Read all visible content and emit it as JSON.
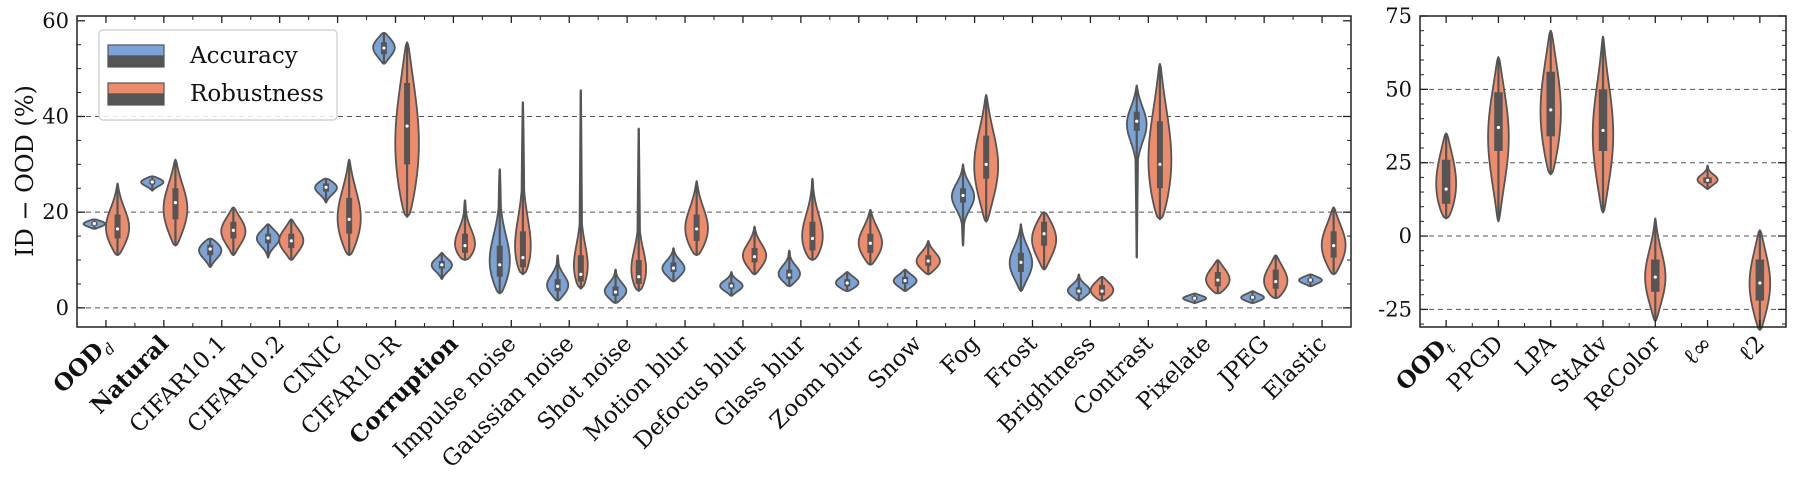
{
  "colors": {
    "accuracy": "#7ba3d6",
    "robustness": "#ec8c6c",
    "outline": "#555555",
    "box": "#555555",
    "grid": "#555555"
  },
  "chart_data": [
    {
      "type": "violin",
      "ylabel": "ID − OOD (%)",
      "ylim": [
        -4,
        61
      ],
      "yticks": [
        0,
        20,
        40,
        60
      ],
      "gridlines": [
        0,
        20,
        40
      ],
      "legend": {
        "placement": "top-left",
        "entries": [
          "Accuracy",
          "Robustness"
        ]
      },
      "categories": [
        {
          "label": "OOD",
          "sub": "d",
          "bold": true
        },
        {
          "label": "Natural",
          "bold": true
        },
        {
          "label": "CIFAR10.1"
        },
        {
          "label": "CIFAR10.2"
        },
        {
          "label": "CINIC"
        },
        {
          "label": "CIFAR10-R"
        },
        {
          "label": "Corruption",
          "bold": true
        },
        {
          "label": "Impulse noise"
        },
        {
          "label": "Gaussian noise"
        },
        {
          "label": "Shot noise"
        },
        {
          "label": "Motion blur"
        },
        {
          "label": "Defocus blur"
        },
        {
          "label": "Glass blur"
        },
        {
          "label": "Zoom blur"
        },
        {
          "label": "Snow"
        },
        {
          "label": "Fog"
        },
        {
          "label": "Frost"
        },
        {
          "label": "Brightness"
        },
        {
          "label": "Contrast"
        },
        {
          "label": "Pixelate"
        },
        {
          "label": "JPEG"
        },
        {
          "label": "Elastic"
        }
      ],
      "series": [
        {
          "name": "Accuracy",
          "color": "#7ba3d6",
          "violins": [
            {
              "min": 16.5,
              "max": 18.5,
              "q1": 17.2,
              "med": 17.6,
              "q3": 18.0,
              "mode": 17.6,
              "hw": 0.85
            },
            {
              "min": 24.5,
              "max": 27.5,
              "q1": 25.8,
              "med": 26.3,
              "q3": 26.8,
              "mode": 26.4,
              "hw": 0.9
            },
            {
              "min": 8.5,
              "max": 14.5,
              "q1": 11.0,
              "med": 12.3,
              "q3": 13.2,
              "mode": 12.3,
              "hw": 0.9
            },
            {
              "min": 10.5,
              "max": 17.5,
              "q1": 13.5,
              "med": 14.6,
              "q3": 15.5,
              "mode": 14.7,
              "hw": 0.9
            },
            {
              "min": 22.0,
              "max": 27.0,
              "q1": 24.3,
              "med": 25.2,
              "q3": 26.0,
              "mode": 25.4,
              "hw": 0.9
            },
            {
              "min": 51.0,
              "max": 57.5,
              "q1": 53.0,
              "med": 54.3,
              "q3": 55.5,
              "mode": 54.5,
              "hw": 0.85
            },
            {
              "min": 6.0,
              "max": 11.5,
              "q1": 8.2,
              "med": 9.0,
              "q3": 9.8,
              "mode": 9.0,
              "hw": 0.8
            },
            {
              "min": 3.0,
              "max": 29.0,
              "q1": 6.5,
              "med": 9.0,
              "q3": 13.0,
              "mode": 8.0,
              "hw": 0.95
            },
            {
              "min": 1.5,
              "max": 11.0,
              "q1": 3.5,
              "med": 4.5,
              "q3": 6.0,
              "mode": 4.3,
              "hw": 0.9
            },
            {
              "min": 1.0,
              "max": 8.0,
              "q1": 2.5,
              "med": 3.3,
              "q3": 4.5,
              "mode": 3.2,
              "hw": 0.9
            },
            {
              "min": 5.5,
              "max": 12.5,
              "q1": 7.5,
              "med": 8.3,
              "q3": 9.5,
              "mode": 8.0,
              "hw": 0.9
            },
            {
              "min": 2.5,
              "max": 7.5,
              "q1": 4.0,
              "med": 4.6,
              "q3": 5.3,
              "mode": 4.5,
              "hw": 0.9
            },
            {
              "min": 4.5,
              "max": 12.0,
              "q1": 6.0,
              "med": 6.9,
              "q3": 8.0,
              "mode": 6.8,
              "hw": 0.9
            },
            {
              "min": 3.5,
              "max": 7.5,
              "q1": 4.5,
              "med": 5.2,
              "q3": 6.0,
              "mode": 5.1,
              "hw": 0.9
            },
            {
              "min": 3.5,
              "max": 8.0,
              "q1": 5.0,
              "med": 5.7,
              "q3": 6.5,
              "mode": 5.6,
              "hw": 0.9
            },
            {
              "min": 13.0,
              "max": 30.0,
              "q1": 22.0,
              "med": 23.5,
              "q3": 25.0,
              "mode": 23.5,
              "hw": 0.9
            },
            {
              "min": 3.5,
              "max": 17.5,
              "q1": 7.5,
              "med": 9.5,
              "q3": 11.5,
              "mode": 9.0,
              "hw": 0.9
            },
            {
              "min": 1.5,
              "max": 7.0,
              "q1": 2.8,
              "med": 3.5,
              "q3": 4.3,
              "mode": 3.4,
              "hw": 0.9
            },
            {
              "min": 10.5,
              "max": 46.5,
              "q1": 37.0,
              "med": 39.0,
              "q3": 41.0,
              "mode": 39.0,
              "hw": 0.95
            },
            {
              "min": 1.0,
              "max": 3.0,
              "q1": 1.7,
              "med": 2.0,
              "q3": 2.4,
              "mode": 2.0,
              "hw": 0.9
            },
            {
              "min": 1.0,
              "max": 3.5,
              "q1": 1.7,
              "med": 2.2,
              "q3": 2.6,
              "mode": 2.1,
              "hw": 0.9
            },
            {
              "min": 4.5,
              "max": 7.0,
              "q1": 5.3,
              "med": 5.8,
              "q3": 6.2,
              "mode": 5.8,
              "hw": 0.9
            }
          ]
        },
        {
          "name": "Robustness",
          "color": "#ec8c6c",
          "violins": [
            {
              "min": 11.0,
              "max": 26.0,
              "q1": 14.5,
              "med": 16.5,
              "q3": 19.5,
              "mode": 16.0,
              "hw": 0.95
            },
            {
              "min": 13.0,
              "max": 31.0,
              "q1": 18.5,
              "med": 22.0,
              "q3": 25.0,
              "mode": 20.0,
              "hw": 0.95
            },
            {
              "min": 11.0,
              "max": 21.0,
              "q1": 14.5,
              "med": 16.2,
              "q3": 18.0,
              "mode": 16.0,
              "hw": 0.95
            },
            {
              "min": 10.0,
              "max": 18.5,
              "q1": 12.5,
              "med": 14.0,
              "q3": 15.5,
              "mode": 14.0,
              "hw": 0.95
            },
            {
              "min": 11.0,
              "max": 31.0,
              "q1": 15.5,
              "med": 18.5,
              "q3": 23.0,
              "mode": 17.5,
              "hw": 0.95
            },
            {
              "min": 19.0,
              "max": 55.5,
              "q1": 30.0,
              "med": 38.0,
              "q3": 47.0,
              "mode": 32.0,
              "hw": 0.95
            },
            {
              "min": 10.0,
              "max": 22.5,
              "q1": 11.5,
              "med": 13.0,
              "q3": 15.5,
              "mode": 12.0,
              "hw": 0.95
            },
            {
              "min": 7.0,
              "max": 43.0,
              "q1": 8.5,
              "med": 10.5,
              "q3": 16.0,
              "mode": 9.5,
              "hw": 0.95
            },
            {
              "min": 4.0,
              "max": 45.5,
              "q1": 5.5,
              "med": 7.0,
              "q3": 11.0,
              "mode": 6.5,
              "hw": 0.95
            },
            {
              "min": 3.5,
              "max": 37.5,
              "q1": 5.0,
              "med": 6.5,
              "q3": 10.0,
              "mode": 6.0,
              "hw": 0.95
            },
            {
              "min": 11.0,
              "max": 26.5,
              "q1": 14.0,
              "med": 16.5,
              "q3": 19.5,
              "mode": 15.5,
              "hw": 0.95
            },
            {
              "min": 7.0,
              "max": 17.0,
              "q1": 9.5,
              "med": 10.7,
              "q3": 12.5,
              "mode": 10.5,
              "hw": 0.95
            },
            {
              "min": 10.0,
              "max": 27.0,
              "q1": 12.0,
              "med": 14.5,
              "q3": 18.0,
              "mode": 13.0,
              "hw": 0.95
            },
            {
              "min": 9.0,
              "max": 20.5,
              "q1": 11.5,
              "med": 13.5,
              "q3": 15.5,
              "mode": 13.0,
              "hw": 0.95
            },
            {
              "min": 7.0,
              "max": 14.0,
              "q1": 8.8,
              "med": 9.8,
              "q3": 11.0,
              "mode": 9.5,
              "hw": 0.95
            },
            {
              "min": 18.0,
              "max": 44.5,
              "q1": 27.0,
              "med": 30.0,
              "q3": 36.0,
              "mode": 29.0,
              "hw": 0.95
            },
            {
              "min": 8.0,
              "max": 20.0,
              "q1": 13.0,
              "med": 15.5,
              "q3": 18.0,
              "mode": 14.5,
              "hw": 0.95
            },
            {
              "min": 1.5,
              "max": 6.5,
              "q1": 2.6,
              "med": 3.5,
              "q3": 4.8,
              "mode": 3.5,
              "hw": 0.9
            },
            {
              "min": 18.5,
              "max": 51.0,
              "q1": 25.0,
              "med": 30.0,
              "q3": 39.0,
              "mode": 28.0,
              "hw": 0.95
            },
            {
              "min": 3.0,
              "max": 10.0,
              "q1": 4.5,
              "med": 5.8,
              "q3": 7.5,
              "mode": 5.5,
              "hw": 0.95
            },
            {
              "min": 2.0,
              "max": 11.0,
              "q1": 4.0,
              "med": 5.5,
              "q3": 8.0,
              "mode": 5.0,
              "hw": 0.95
            },
            {
              "min": 7.0,
              "max": 21.0,
              "q1": 10.5,
              "med": 13.0,
              "q3": 16.0,
              "mode": 12.5,
              "hw": 0.95
            }
          ]
        }
      ]
    },
    {
      "type": "violin",
      "ylim": [
        -31,
        75
      ],
      "yticks": [
        -25,
        0,
        25,
        50,
        75
      ],
      "gridlines": [
        -25,
        0,
        25,
        50
      ],
      "categories": [
        {
          "label": "OOD",
          "sub": "t",
          "bold": true
        },
        {
          "label": "PPGD"
        },
        {
          "label": "LPA"
        },
        {
          "label": "StAdv"
        },
        {
          "label": "ReColor"
        },
        {
          "label": "ℓ∞"
        },
        {
          "label": "ℓ2"
        }
      ],
      "series": [
        {
          "name": "Robustness",
          "color": "#ec8c6c",
          "violins": [
            {
              "min": 6.0,
              "max": 35.0,
              "q1": 11.0,
              "med": 16.0,
              "q3": 26.0,
              "mode": 15.0,
              "hw": 0.55
            },
            {
              "min": 5.0,
              "max": 61.0,
              "q1": 29.0,
              "med": 37.0,
              "q3": 49.0,
              "mode": 34.0,
              "hw": 0.55
            },
            {
              "min": 21.0,
              "max": 70.0,
              "q1": 34.0,
              "med": 43.0,
              "q3": 56.0,
              "mode": 40.0,
              "hw": 0.55
            },
            {
              "min": 8.0,
              "max": 68.0,
              "q1": 29.0,
              "med": 36.0,
              "q3": 50.0,
              "mode": 33.0,
              "hw": 0.55
            },
            {
              "min": -29.0,
              "max": 6.0,
              "q1": -19.0,
              "med": -14.0,
              "q3": -8.0,
              "mode": -15.0,
              "hw": 0.55
            },
            {
              "min": 16.0,
              "max": 24.0,
              "q1": 18.0,
              "med": 19.0,
              "q3": 20.0,
              "mode": 19.0,
              "hw": 0.55
            },
            {
              "min": -32.0,
              "max": 2.0,
              "q1": -22.0,
              "med": -16.0,
              "q3": -8.0,
              "mode": -17.0,
              "hw": 0.55
            }
          ]
        }
      ]
    }
  ]
}
